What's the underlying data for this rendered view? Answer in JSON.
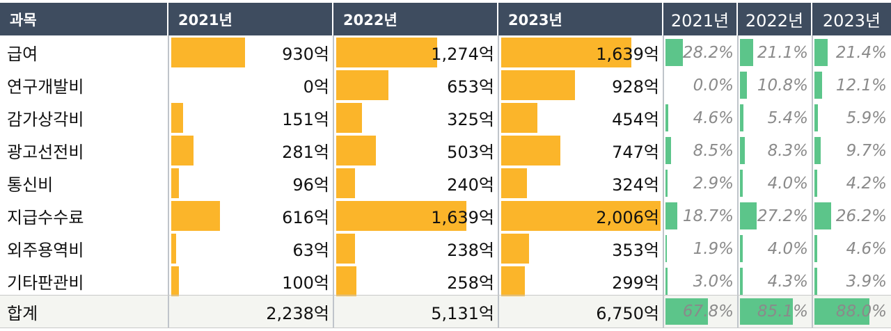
{
  "headers": {
    "subject": "과목",
    "years": [
      "2021년",
      "2022년",
      "2023년"
    ],
    "pct_years": [
      "2021년",
      "2022년",
      "2023년"
    ]
  },
  "colors": {
    "header_bg": "#3e4c5f",
    "amount_bar": "#fbb52a",
    "percent_bar": "#5cc58a"
  },
  "chart_data": {
    "type": "table",
    "title": "",
    "unit": "억",
    "columns": [
      "과목",
      "2021년",
      "2022년",
      "2023년",
      "2021년",
      "2022년",
      "2023년"
    ],
    "rows": [
      {
        "name": "급여",
        "amounts": [
          930,
          1274,
          1639
        ],
        "amount_labels": [
          "930억",
          "1,274억",
          "1,639억"
        ],
        "percents": [
          28.2,
          21.1,
          21.4
        ],
        "percent_labels": [
          "28.2%",
          "21.1%",
          "21.4%"
        ]
      },
      {
        "name": "연구개발비",
        "amounts": [
          0,
          653,
          928
        ],
        "amount_labels": [
          "0억",
          "653억",
          "928억"
        ],
        "percents": [
          0.0,
          10.8,
          12.1
        ],
        "percent_labels": [
          "0.0%",
          "10.8%",
          "12.1%"
        ]
      },
      {
        "name": "감가상각비",
        "amounts": [
          151,
          325,
          454
        ],
        "amount_labels": [
          "151억",
          "325억",
          "454억"
        ],
        "percents": [
          4.6,
          5.4,
          5.9
        ],
        "percent_labels": [
          "4.6%",
          "5.4%",
          "5.9%"
        ]
      },
      {
        "name": "광고선전비",
        "amounts": [
          281,
          503,
          747
        ],
        "amount_labels": [
          "281억",
          "503억",
          "747억"
        ],
        "percents": [
          8.5,
          8.3,
          9.7
        ],
        "percent_labels": [
          "8.5%",
          "8.3%",
          "9.7%"
        ]
      },
      {
        "name": "통신비",
        "amounts": [
          96,
          240,
          324
        ],
        "amount_labels": [
          "96억",
          "240억",
          "324억"
        ],
        "percents": [
          2.9,
          4.0,
          4.2
        ],
        "percent_labels": [
          "2.9%",
          "4.0%",
          "4.2%"
        ]
      },
      {
        "name": "지급수수료",
        "amounts": [
          616,
          1639,
          2006
        ],
        "amount_labels": [
          "616억",
          "1,639억",
          "2,006억"
        ],
        "percents": [
          18.7,
          27.2,
          26.2
        ],
        "percent_labels": [
          "18.7%",
          "27.2%",
          "26.2%"
        ]
      },
      {
        "name": "외주용역비",
        "amounts": [
          63,
          238,
          353
        ],
        "amount_labels": [
          "63억",
          "238억",
          "353억"
        ],
        "percents": [
          1.9,
          4.0,
          4.6
        ],
        "percent_labels": [
          "1.9%",
          "4.0%",
          "4.6%"
        ]
      },
      {
        "name": "기타판관비",
        "amounts": [
          100,
          258,
          299
        ],
        "amount_labels": [
          "100억",
          "258억",
          "299억"
        ],
        "percents": [
          3.0,
          4.3,
          3.9
        ],
        "percent_labels": [
          "3.0%",
          "4.3%",
          "3.9%"
        ]
      }
    ],
    "total": {
      "name": "합계",
      "amounts": [
        2238,
        5131,
        6750
      ],
      "amount_labels": [
        "2,238억",
        "5,131억",
        "6,750억"
      ],
      "percents": [
        67.8,
        85.1,
        88.0
      ],
      "percent_labels": [
        "67.8%",
        "85.1%",
        "88.0%"
      ]
    }
  }
}
